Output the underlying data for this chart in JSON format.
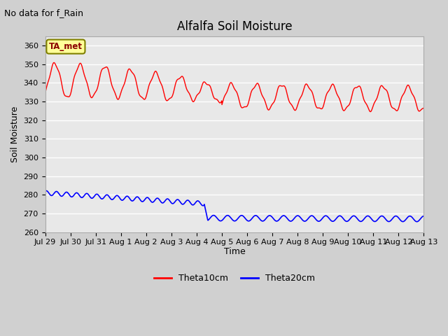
{
  "title": "Alfalfa Soil Moisture",
  "subtitle": "No data for f_Rain",
  "ylabel": "Soil Moisture",
  "xlabel": "Time",
  "ylim": [
    260,
    365
  ],
  "yticks": [
    260,
    270,
    280,
    290,
    300,
    310,
    320,
    330,
    340,
    350,
    360
  ],
  "xtick_labels": [
    "Jul 29",
    "Jul 30",
    "Jul 31",
    "Aug 1",
    "Aug 2",
    "Aug 3",
    "Aug 4",
    "Aug 5",
    "Aug 6",
    "Aug 7",
    "Aug 8",
    "Aug 9",
    "Aug 10",
    "Aug 11",
    "Aug 12",
    "Aug 13"
  ],
  "n_ticks": 16,
  "legend_label1": "Theta10cm",
  "legend_label2": "Theta20cm",
  "color1": "#ff0000",
  "color2": "#0000ff",
  "fig_bg_color": "#d0d0d0",
  "plot_bg_color": "#e8e8e8",
  "grid_color": "#ffffff",
  "annotation_text": "TA_met",
  "annotation_fg": "#8b0000",
  "annotation_bg": "#ffff99",
  "annotation_border": "#808000",
  "title_fontsize": 12,
  "subtitle_fontsize": 9,
  "tick_fontsize": 8,
  "ylabel_fontsize": 9,
  "xlabel_fontsize": 9,
  "legend_fontsize": 9
}
